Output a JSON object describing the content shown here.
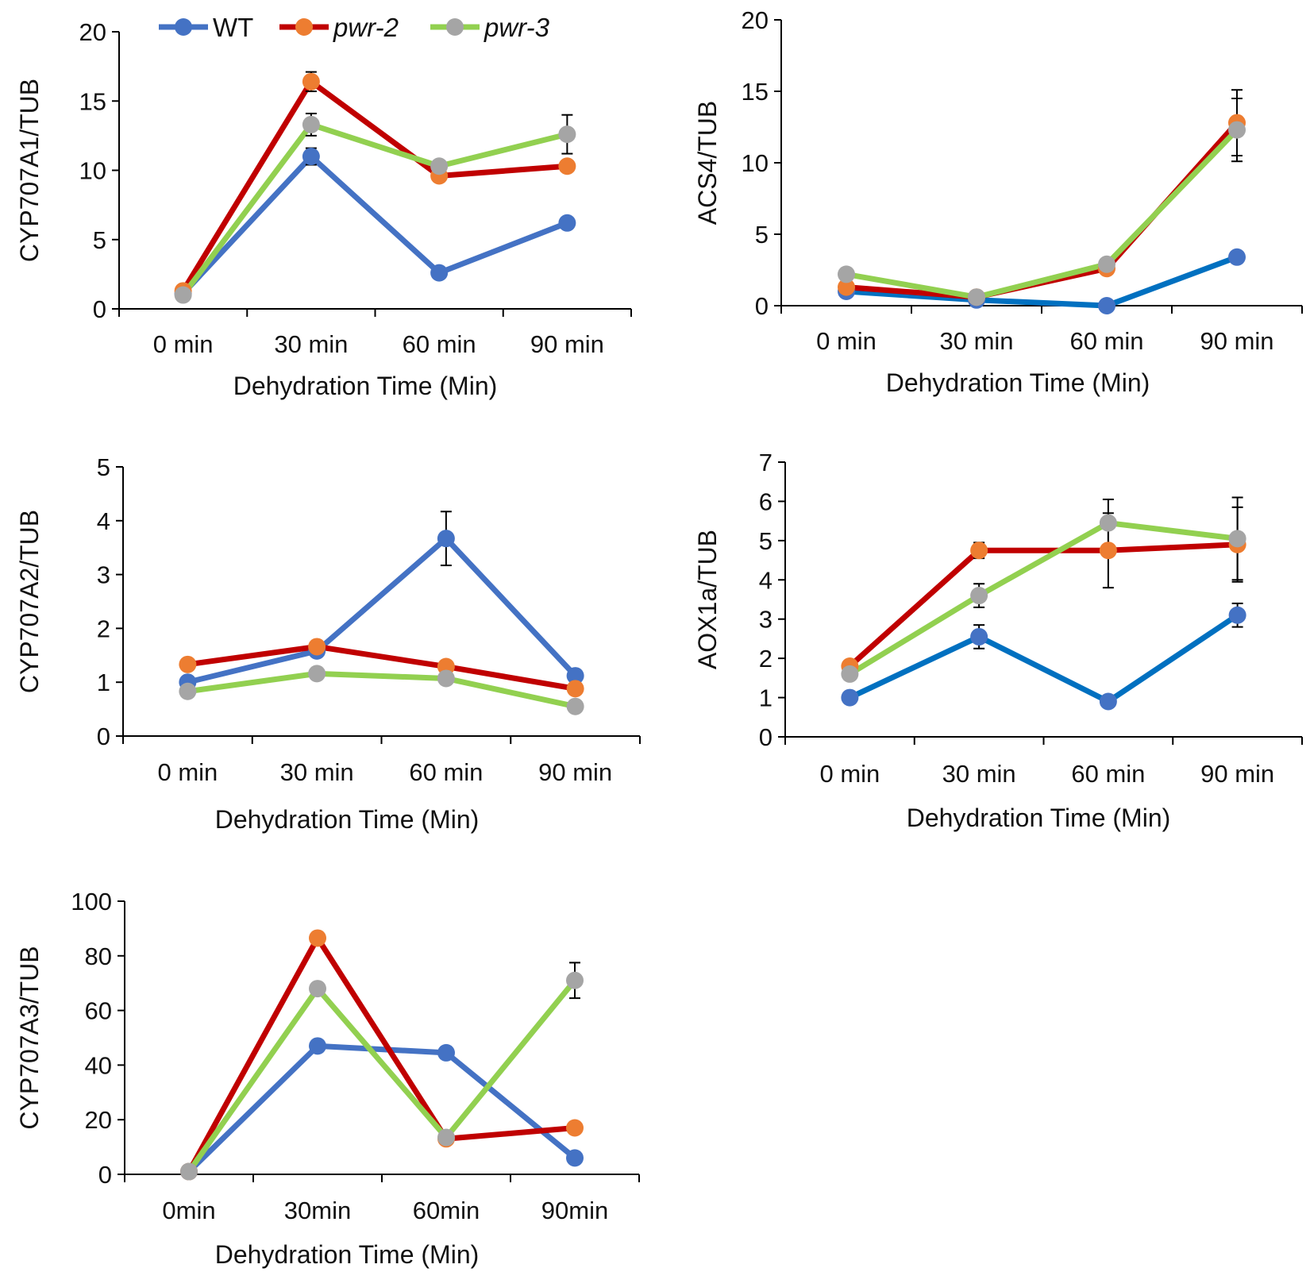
{
  "legend": {
    "entries": [
      {
        "label": "WT",
        "italic": false,
        "line_color": "#4472C4",
        "marker_color": "#4472C4"
      },
      {
        "label": "pwr-2",
        "italic": true,
        "line_color": "#C00000",
        "marker_color": "#ED7D31"
      },
      {
        "label": "pwr-3",
        "italic": true,
        "line_color": "#92D050",
        "marker_color": "#A5A5A5"
      }
    ]
  },
  "chart_data": [
    {
      "id": "cyp707a1",
      "type": "line",
      "title": "",
      "xlabel": "Dehydration Time (Min)",
      "ylabel": "CYP707A1/TUB",
      "categories": [
        "0 min",
        "30 min",
        "60 min",
        "90 min"
      ],
      "ylim": [
        0,
        20
      ],
      "yticks": [
        0,
        5,
        10,
        15,
        20
      ],
      "grid": false,
      "series": [
        {
          "name": "WT",
          "line_color": "#4472C4",
          "marker_color": "#4472C4",
          "values": [
            1.1,
            11.0,
            2.6,
            6.2
          ],
          "errors": [
            0,
            0.6,
            0,
            0
          ]
        },
        {
          "name": "pwr-2",
          "line_color": "#C00000",
          "marker_color": "#ED7D31",
          "values": [
            1.3,
            16.4,
            9.6,
            10.3
          ],
          "errors": [
            0,
            0.7,
            0,
            0
          ]
        },
        {
          "name": "pwr-3",
          "line_color": "#92D050",
          "marker_color": "#A5A5A5",
          "values": [
            1.0,
            13.3,
            10.3,
            12.6
          ],
          "errors": [
            0,
            0.8,
            0,
            1.4
          ]
        }
      ]
    },
    {
      "id": "acs4",
      "type": "line",
      "title": "",
      "xlabel": "Dehydration Time (Min)",
      "ylabel": "ACS4/TUB",
      "categories": [
        "0 min",
        "30 min",
        "60 min",
        "90 min"
      ],
      "ylim": [
        0,
        20
      ],
      "yticks": [
        0,
        5,
        10,
        15,
        20
      ],
      "grid": false,
      "series": [
        {
          "name": "WT",
          "line_color": "#0070C0",
          "marker_color": "#4472C4",
          "values": [
            1.0,
            0.4,
            0.0,
            3.4
          ],
          "errors": [
            0,
            0,
            0,
            0
          ]
        },
        {
          "name": "pwr-2",
          "line_color": "#C00000",
          "marker_color": "#ED7D31",
          "values": [
            1.3,
            0.6,
            2.6,
            12.8
          ],
          "errors": [
            0,
            0,
            0,
            2.3
          ]
        },
        {
          "name": "pwr-3",
          "line_color": "#92D050",
          "marker_color": "#A5A5A5",
          "values": [
            2.2,
            0.6,
            2.9,
            12.3
          ],
          "errors": [
            0,
            0,
            0,
            2.2
          ]
        }
      ]
    },
    {
      "id": "cyp707a2",
      "type": "line",
      "title": "",
      "xlabel": "Dehydration Time (Min)",
      "ylabel": "CYP707A2/TUB",
      "categories": [
        "0 min",
        "30 min",
        "60 min",
        "90 min"
      ],
      "ylim": [
        0,
        5
      ],
      "yticks": [
        0,
        1,
        2,
        3,
        4,
        5
      ],
      "grid": false,
      "series": [
        {
          "name": "WT",
          "line_color": "#4472C4",
          "marker_color": "#4472C4",
          "values": [
            1.0,
            1.58,
            3.67,
            1.12
          ],
          "errors": [
            0,
            0,
            0.5,
            0
          ]
        },
        {
          "name": "pwr-2",
          "line_color": "#C00000",
          "marker_color": "#ED7D31",
          "values": [
            1.33,
            1.66,
            1.29,
            0.88
          ],
          "errors": [
            0,
            0,
            0,
            0
          ]
        },
        {
          "name": "pwr-3",
          "line_color": "#92D050",
          "marker_color": "#A5A5A5",
          "values": [
            0.83,
            1.16,
            1.07,
            0.55
          ],
          "errors": [
            0,
            0,
            0,
            0
          ]
        }
      ]
    },
    {
      "id": "aox1a",
      "type": "line",
      "title": "",
      "xlabel": "Dehydration Time (Min)",
      "ylabel": "AOX1a/TUB",
      "categories": [
        "0 min",
        "30 min",
        "60 min",
        "90 min"
      ],
      "ylim": [
        0,
        7
      ],
      "yticks": [
        0,
        1,
        2,
        3,
        4,
        5,
        6,
        7
      ],
      "grid": false,
      "series": [
        {
          "name": "WT",
          "line_color": "#0070C0",
          "marker_color": "#4472C4",
          "values": [
            1.0,
            2.55,
            0.9,
            3.1
          ],
          "errors": [
            0,
            0.3,
            0,
            0.3
          ]
        },
        {
          "name": "pwr-2",
          "line_color": "#C00000",
          "marker_color": "#ED7D31",
          "values": [
            1.8,
            4.75,
            4.75,
            4.9
          ],
          "errors": [
            0,
            0.2,
            0.95,
            0.95
          ]
        },
        {
          "name": "pwr-3",
          "line_color": "#92D050",
          "marker_color": "#A5A5A5",
          "values": [
            1.6,
            3.6,
            5.45,
            5.05
          ],
          "errors": [
            0,
            0.3,
            0.6,
            1.05
          ]
        }
      ]
    },
    {
      "id": "cyp707a3",
      "type": "line",
      "title": "",
      "xlabel": "Dehydration Time (Min)",
      "ylabel": "CYP707A3/TUB",
      "categories": [
        "0min",
        "30min",
        "60min",
        "90min"
      ],
      "ylim": [
        0,
        100
      ],
      "yticks": [
        0,
        20,
        40,
        60,
        80,
        100
      ],
      "grid": false,
      "series": [
        {
          "name": "WT",
          "line_color": "#4472C4",
          "marker_color": "#4472C4",
          "values": [
            1,
            47,
            44.5,
            6
          ],
          "errors": [
            0,
            0,
            0,
            0
          ]
        },
        {
          "name": "pwr-2",
          "line_color": "#C00000",
          "marker_color": "#ED7D31",
          "values": [
            1,
            86.5,
            13,
            17
          ],
          "errors": [
            0,
            0,
            0,
            0
          ]
        },
        {
          "name": "pwr-3",
          "line_color": "#92D050",
          "marker_color": "#A5A5A5",
          "values": [
            1,
            68,
            13.5,
            71
          ],
          "errors": [
            0,
            0,
            0,
            6.5
          ]
        }
      ]
    }
  ]
}
